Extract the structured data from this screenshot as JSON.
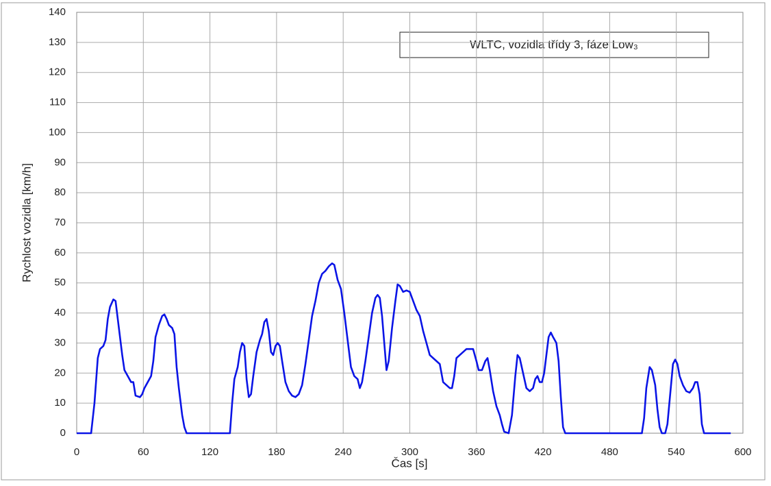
{
  "chart_data": {
    "type": "line",
    "title": "WLTC, vozidla třídy 3, fáze Low₃",
    "y_label": "Rychlost vozidla [km/h]",
    "x_label": "Čas [s]",
    "xlim": [
      0,
      600
    ],
    "xticks": [
      0,
      60,
      120,
      180,
      240,
      300,
      360,
      420,
      480,
      540,
      600
    ],
    "ylim": [
      0,
      140
    ],
    "yticks": [
      0,
      10,
      20,
      30,
      40,
      50,
      60,
      70,
      80,
      90,
      100,
      110,
      120,
      130,
      140
    ],
    "grid": true,
    "series": [
      {
        "color": "#0a14e6",
        "x": [
          0,
          11,
          13,
          16,
          19,
          21,
          24,
          26,
          28,
          30,
          33,
          35,
          37,
          39,
          41,
          43,
          46,
          49,
          51,
          53,
          57,
          59,
          61,
          64,
          67,
          69,
          71,
          74,
          77,
          79,
          81,
          83,
          86,
          88,
          90,
          92,
          95,
          97,
          99,
          138,
          140,
          142,
          145,
          147,
          149,
          151,
          153,
          155,
          157,
          159,
          162,
          165,
          167,
          169,
          171,
          173,
          175,
          177,
          179,
          181,
          183,
          185,
          188,
          191,
          194,
          197,
          200,
          203,
          206,
          209,
          212,
          215,
          218,
          221,
          224,
          227,
          230,
          232,
          235,
          238,
          241,
          244,
          247,
          250,
          253,
          255,
          257,
          260,
          263,
          266,
          269,
          271,
          273,
          275,
          277,
          279,
          281,
          284,
          287,
          289,
          291,
          294,
          297,
          300,
          303,
          306,
          309,
          312,
          315,
          318,
          321,
          324,
          327,
          330,
          333,
          336,
          338,
          340,
          342,
          345,
          348,
          351,
          354,
          357,
          360,
          362,
          365,
          368,
          370,
          372,
          375,
          378,
          381,
          383,
          385,
          389,
          392,
          395,
          397,
          399,
          402,
          405,
          408,
          411,
          413,
          415,
          417,
          419,
          421,
          423,
          425,
          427,
          429,
          432,
          434,
          436,
          438,
          440,
          509,
          511,
          513,
          516,
          518,
          521,
          523,
          525,
          527,
          530,
          532,
          535,
          537,
          539,
          541,
          543,
          546,
          549,
          552,
          555,
          557,
          559,
          561,
          563,
          565,
          589
        ],
        "values": [
          0,
          0,
          0,
          10,
          25,
          28,
          29,
          31,
          38,
          42,
          44.5,
          44,
          38,
          32,
          26,
          21,
          19,
          17,
          17,
          12.5,
          12,
          13,
          15,
          17,
          19,
          24,
          32,
          36,
          39,
          39.5,
          38,
          36,
          35,
          33,
          22,
          15,
          6,
          2,
          0,
          0,
          10,
          18,
          22,
          27,
          30,
          29,
          18,
          12,
          13,
          19,
          27,
          31,
          33,
          37,
          38,
          34,
          27,
          26,
          29,
          30,
          29,
          24,
          17,
          14,
          12.5,
          12,
          13,
          16,
          23,
          31,
          39,
          44,
          50,
          53,
          54,
          55.5,
          56.5,
          56,
          51,
          48,
          40,
          31,
          22,
          19,
          18,
          15,
          17,
          24,
          32,
          40,
          45,
          46,
          45,
          39,
          30,
          21,
          24,
          35,
          44,
          49.5,
          49,
          47,
          47.5,
          47,
          44,
          41,
          39,
          34,
          30,
          26,
          25,
          24,
          23,
          17,
          16,
          15,
          15,
          19,
          25,
          26,
          27,
          28,
          28,
          28,
          24,
          21,
          21,
          24,
          25,
          21,
          14,
          9,
          6,
          3,
          0.5,
          0,
          6,
          19,
          26,
          25,
          20,
          15,
          14,
          15,
          18,
          19,
          17,
          17,
          20,
          26,
          32,
          33.5,
          32,
          30,
          24,
          12,
          2,
          0,
          0,
          5,
          15,
          22,
          21,
          16,
          8,
          2,
          0,
          0,
          3,
          15,
          23,
          24.5,
          23,
          19,
          16,
          14,
          13.5,
          15,
          17,
          17,
          13,
          3,
          0,
          0
        ]
      }
    ]
  }
}
